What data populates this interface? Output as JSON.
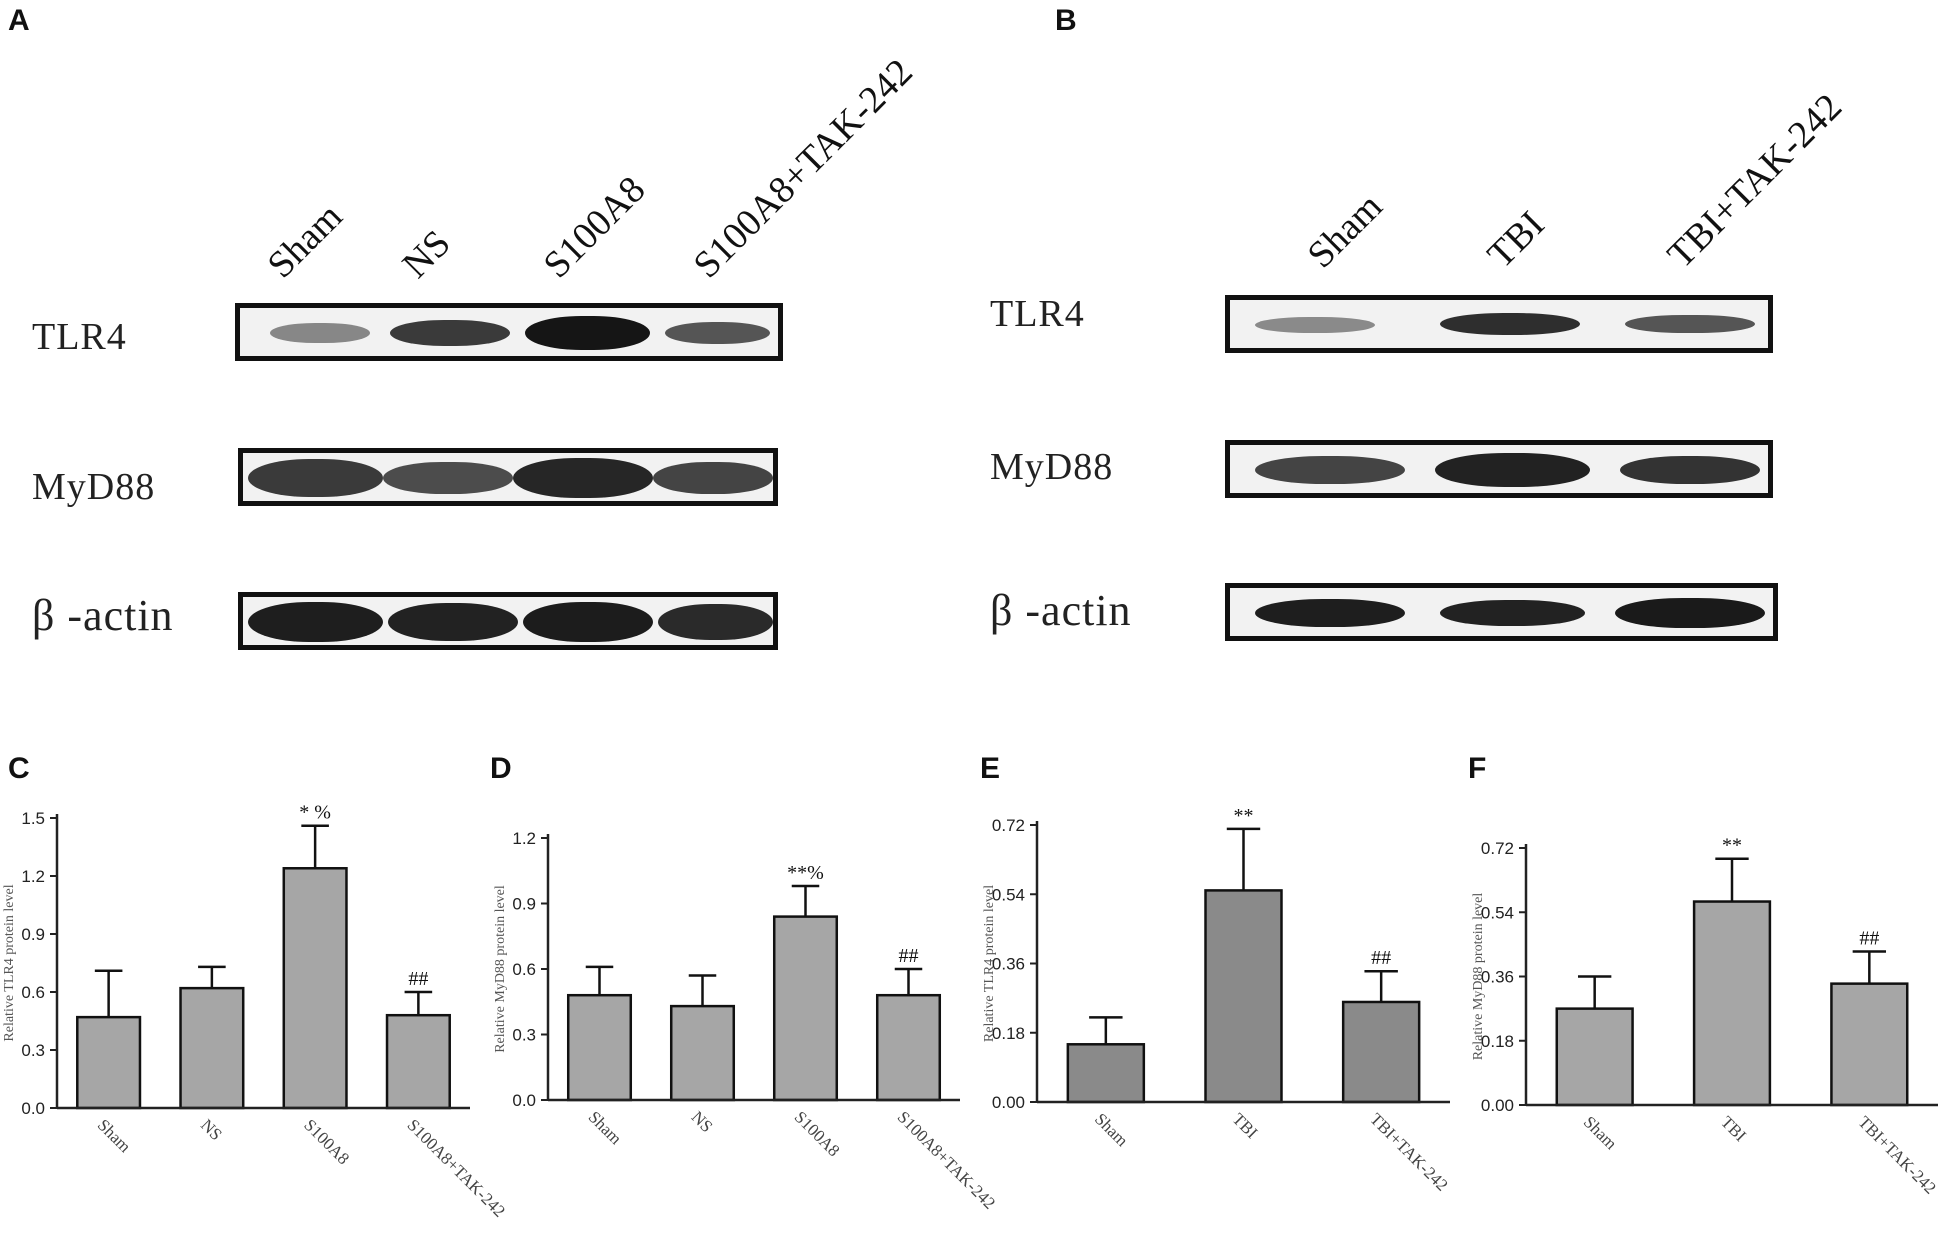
{
  "panels": {
    "A": "A",
    "B": "B",
    "C": "C",
    "D": "D",
    "E": "E",
    "F": "F"
  },
  "blotA": {
    "lanes": [
      "Sham",
      "NS",
      "S100A8",
      "S100A8+TAK-242"
    ],
    "rows": [
      "TLR4",
      "MyD88",
      "β -actin"
    ]
  },
  "blotB": {
    "lanes": [
      "Sham",
      "TBI",
      "TBI+TAK-242"
    ],
    "rows": [
      "TLR4",
      "MyD88",
      "β -actin"
    ]
  },
  "colors": {
    "bar": "#a6a6a6",
    "bar_dark": "#8a8a8a",
    "axis": "#222222"
  },
  "chart_data": [
    {
      "panel": "C",
      "type": "bar",
      "ylabel": "Relative TLR4 protein level",
      "categories": [
        "Sham",
        "NS",
        "S100A8",
        "S100A8+TAK-242"
      ],
      "values": [
        0.47,
        0.62,
        1.24,
        0.48
      ],
      "errors": [
        0.24,
        0.11,
        0.22,
        0.12
      ],
      "annotations": [
        "",
        "",
        "* %",
        "##"
      ],
      "ylim": [
        0,
        1.5
      ],
      "yticks": [
        "0.0",
        "0.3",
        "0.6",
        "0.9",
        "1.2",
        "1.5"
      ]
    },
    {
      "panel": "D",
      "type": "bar",
      "ylabel": "Relative MyD88  protein level",
      "categories": [
        "Sham",
        "NS",
        "S100A8",
        "S100A8+TAK-242"
      ],
      "values": [
        0.48,
        0.43,
        0.84,
        0.48
      ],
      "errors": [
        0.13,
        0.14,
        0.14,
        0.12
      ],
      "annotations": [
        "",
        "",
        "**%",
        "##"
      ],
      "ylim": [
        0,
        1.2
      ],
      "yticks": [
        "0.0",
        "0.3",
        "0.6",
        "0.9",
        "1.2"
      ]
    },
    {
      "panel": "E",
      "type": "bar",
      "ylabel": "Relative TLR4 protein level",
      "categories": [
        "Sham",
        "TBI",
        "TBI+TAK-242"
      ],
      "values": [
        0.15,
        0.55,
        0.26
      ],
      "errors": [
        0.07,
        0.16,
        0.08
      ],
      "annotations": [
        "",
        "**",
        "##"
      ],
      "ylim": [
        0,
        0.72
      ],
      "yticks": [
        "0.00",
        "0.18",
        "0.36",
        "0.54",
        "0.72"
      ]
    },
    {
      "panel": "F",
      "type": "bar",
      "ylabel": "Relative MyD88 protein level",
      "categories": [
        "Sham",
        "TBI",
        "TBI+TAK-242"
      ],
      "values": [
        0.27,
        0.57,
        0.34
      ],
      "errors": [
        0.09,
        0.12,
        0.09
      ],
      "annotations": [
        "",
        "**",
        "##"
      ],
      "ylim": [
        0,
        0.72
      ],
      "yticks": [
        "0.00",
        "0.18",
        "0.36",
        "0.54",
        "0.72"
      ]
    }
  ]
}
